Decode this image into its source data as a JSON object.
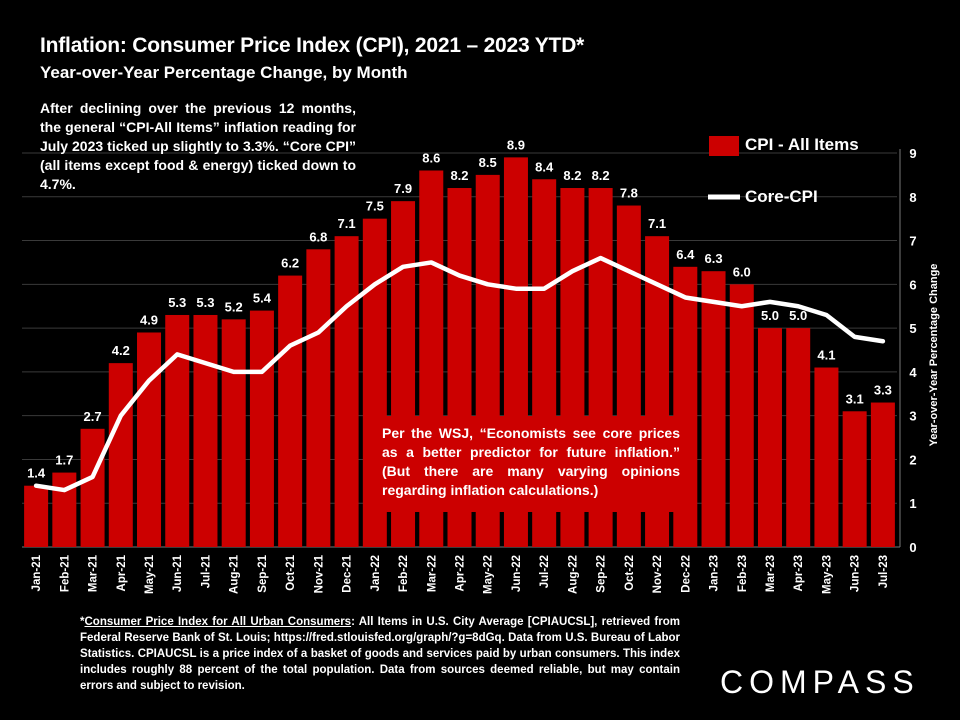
{
  "title": "Inflation: Consumer Price Index (CPI), 2021 – 2023 YTD*",
  "subtitle": "Year-over-Year Percentage Change, by Month",
  "note": "After declining over the previous 12 months, the general “CPI-All Items” inflation reading for July 2023 ticked up slightly to 3.3%. “Core CPI” (all items except food & energy) ticked down to 4.7%.",
  "wsj_note": "Per the WSJ, “Economists see core prices as a better predictor for future inflation.” (But there are many varying opinions regarding inflation calculations.)",
  "footnote_link": "Consumer Price Index for All Urban Consumers",
  "footnote_rest": ": All Items in U.S. City Average [CPIAUCSL], retrieved from Federal Reserve Bank of St. Louis; https://fred.stlouisfed.org/graph/?g=8dGq. Data from U.S. Bureau of Labor Statistics. CPIAUCSL is a price index of a basket of goods and services paid by urban consumers. This index includes roughly 88 percent of the total population. Data from sources deemed reliable, but may contain errors and subject to revision.",
  "footnote_prefix": "*",
  "logo": "COMPASS",
  "chart_data": {
    "type": "bar",
    "title": "Inflation: Consumer Price Index (CPI), 2021 – 2023 YTD*",
    "ylabel": "Year-over-Year Percentage Change",
    "ylim": [
      0,
      9
    ],
    "yticks": [
      0,
      1,
      2,
      3,
      4,
      5,
      6,
      7,
      8,
      9
    ],
    "legend_position": "top-right",
    "colors": {
      "bar": "#cc0000",
      "line": "#ffffff"
    },
    "categories": [
      "Jan-21",
      "Feb-21",
      "Mar-21",
      "Apr-21",
      "May-21",
      "Jun-21",
      "Jul-21",
      "Aug-21",
      "Sep-21",
      "Oct-21",
      "Nov-21",
      "Dec-21",
      "Jan-22",
      "Feb-22",
      "Mar-22",
      "Apr-22",
      "May-22",
      "Jun-22",
      "Jul-22",
      "Aug-22",
      "Sep-22",
      "Oct-22",
      "Nov-22",
      "Dec-22",
      "Jan-23",
      "Feb-23",
      "Mar-23",
      "Apr-23",
      "May-23",
      "Jun-23",
      "Jul-23"
    ],
    "series": [
      {
        "name": "CPI - All Items",
        "type": "bar",
        "values": [
          1.4,
          1.7,
          2.7,
          4.2,
          4.9,
          5.3,
          5.3,
          5.2,
          5.4,
          6.2,
          6.8,
          7.1,
          7.5,
          7.9,
          8.6,
          8.2,
          8.5,
          8.9,
          8.4,
          8.2,
          8.2,
          7.8,
          7.1,
          6.4,
          6.3,
          6.0,
          5.0,
          5.0,
          4.1,
          3.1,
          3.3
        ],
        "labels": [
          "1.4",
          "1.7",
          "2.7",
          "4.2",
          "4.9",
          "5.3",
          "5.3",
          "5.2",
          "5.4",
          "6.2",
          "6.8",
          "7.1",
          "7.5",
          "7.9",
          "8.6",
          "8.2",
          "8.5",
          "8.9",
          "8.4",
          "8.2",
          "8.2",
          "7.8",
          "7.1",
          "6.4",
          "6.3",
          "6.0",
          "5.0",
          "5.0",
          "4.1",
          "3.1",
          "3.3"
        ]
      },
      {
        "name": "Core-CPI",
        "type": "line",
        "values": [
          1.4,
          1.3,
          1.6,
          3.0,
          3.8,
          4.4,
          4.2,
          4.0,
          4.0,
          4.6,
          4.9,
          5.5,
          6.0,
          6.4,
          6.5,
          6.2,
          6.0,
          5.9,
          5.9,
          6.3,
          6.6,
          6.3,
          6.0,
          5.7,
          5.6,
          5.5,
          5.6,
          5.5,
          5.3,
          4.8,
          4.7
        ]
      }
    ]
  }
}
